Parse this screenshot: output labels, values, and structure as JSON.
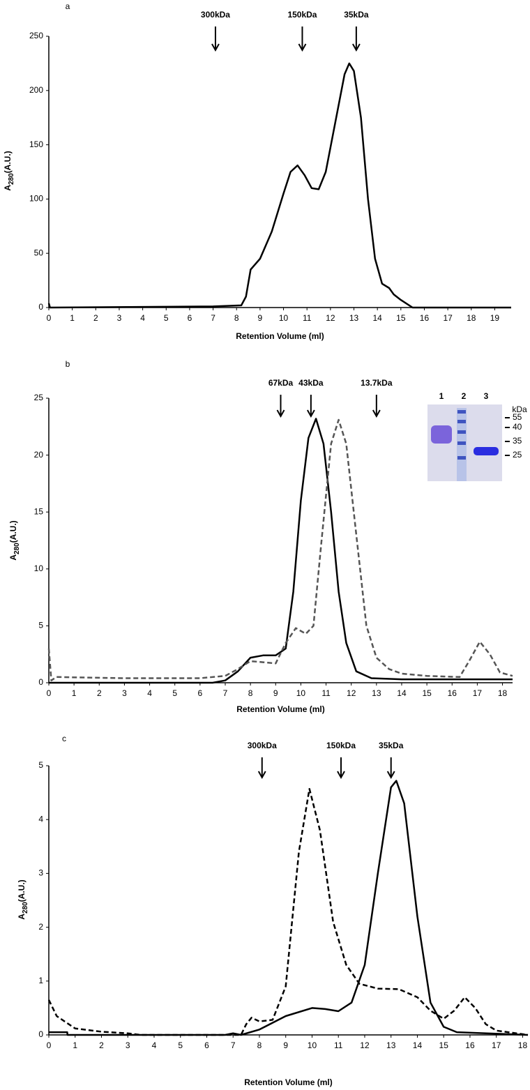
{
  "chart_data": [
    {
      "type": "line",
      "panel": "a",
      "xlabel": "Retention Volume (ml)",
      "ylabel": "A",
      "ylabel_sub": "280",
      "ylabel_unit": "(A.U.)",
      "xlim": [
        0,
        19.7
      ],
      "xticks": [
        0,
        1,
        2,
        3,
        4,
        5,
        6,
        7,
        8,
        9,
        10,
        11,
        12,
        13,
        14,
        15,
        16,
        17,
        18,
        19
      ],
      "ylim": [
        0,
        250
      ],
      "yticks": [
        0,
        50,
        100,
        150,
        200,
        250
      ],
      "markers": [
        {
          "label": "300kDa",
          "x": 7.1
        },
        {
          "label": "150kDa",
          "x": 10.8
        },
        {
          "label": "35kDa",
          "x": 13.1
        }
      ],
      "series": [
        {
          "color": "#000000",
          "dash": false,
          "x": [
            0,
            0.05,
            7,
            8.2,
            8.4,
            8.6,
            9,
            9.5,
            10,
            10.3,
            10.6,
            10.9,
            11.2,
            11.5,
            11.8,
            12.2,
            12.6,
            12.8,
            13,
            13.3,
            13.6,
            13.9,
            14.2,
            14.5,
            14.7,
            15,
            15.5,
            19.7
          ],
          "values": [
            4,
            0,
            1,
            2,
            10,
            35,
            45,
            70,
            105,
            125,
            131,
            122,
            110,
            109,
            125,
            170,
            215,
            225,
            218,
            175,
            100,
            45,
            22,
            18,
            12,
            7,
            0,
            0
          ]
        }
      ]
    },
    {
      "type": "line",
      "panel": "b",
      "xlabel": "Retention Volume (ml)",
      "ylabel": "A",
      "ylabel_sub": "280",
      "ylabel_unit": "(A.U.)",
      "xlim": [
        0,
        18.4
      ],
      "xticks": [
        0,
        1,
        2,
        3,
        4,
        5,
        6,
        7,
        8,
        9,
        10,
        11,
        12,
        13,
        14,
        15,
        16,
        17,
        18
      ],
      "ylim": [
        0,
        25
      ],
      "yticks": [
        0,
        5,
        10,
        15,
        20,
        25
      ],
      "markers": [
        {
          "label": "67kDa",
          "x": 9.2
        },
        {
          "label": "43kDa",
          "x": 10.4
        },
        {
          "label": "13.7kDa",
          "x": 13.0
        }
      ],
      "inset": {
        "lanes": [
          "1",
          "2",
          "3"
        ],
        "unit": "kDa",
        "sizes": [
          "55",
          "40",
          "35",
          "25"
        ]
      },
      "series": [
        {
          "color": "#000000",
          "dash": false,
          "x": [
            0,
            6.5,
            7,
            7.5,
            8,
            8.5,
            9,
            9.4,
            9.7,
            10,
            10.3,
            10.6,
            10.9,
            11.2,
            11.5,
            11.8,
            12.2,
            12.8,
            14,
            18.4
          ],
          "values": [
            0,
            0,
            0.2,
            1,
            2.2,
            2.4,
            2.4,
            3,
            8,
            16,
            21.5,
            23.2,
            21,
            15,
            8,
            3.5,
            1,
            0.4,
            0.3,
            0.3
          ]
        },
        {
          "color": "#555555",
          "dash": true,
          "x": [
            0,
            0.1,
            0.3,
            3,
            6,
            7,
            7.5,
            8,
            8.5,
            9,
            9.4,
            9.8,
            10.2,
            10.5,
            10.8,
            11.2,
            11.5,
            11.8,
            12.2,
            12.6,
            13,
            13.5,
            14,
            15,
            16.3,
            16.7,
            17.1,
            17.5,
            17.9,
            18.4
          ],
          "values": [
            3,
            0.2,
            0.5,
            0.4,
            0.4,
            0.6,
            1.2,
            1.9,
            1.8,
            1.7,
            3.5,
            4.8,
            4.3,
            5,
            12,
            21,
            23.1,
            21,
            13,
            5,
            2.2,
            1.2,
            0.8,
            0.6,
            0.5,
            2,
            3.6,
            2.5,
            0.9,
            0.6
          ]
        }
      ]
    },
    {
      "type": "line",
      "panel": "c",
      "xlabel": "Retention Volume (ml)",
      "ylabel": "A",
      "ylabel_sub": "280",
      "ylabel_unit": "(A.U.)",
      "xlim": [
        0,
        18.2
      ],
      "xticks": [
        0,
        1,
        2,
        3,
        4,
        5,
        6,
        7,
        8,
        9,
        10,
        11,
        12,
        13,
        14,
        15,
        16,
        17,
        18
      ],
      "ylim": [
        0,
        5
      ],
      "yticks": [
        0,
        1,
        2,
        3,
        4,
        5
      ],
      "markers": [
        {
          "label": "300kDa",
          "x": 8.1
        },
        {
          "label": "150kDa",
          "x": 11.1
        },
        {
          "label": "35kDa",
          "x": 13.0
        }
      ],
      "series": [
        {
          "color": "#000000",
          "dash": false,
          "x": [
            0,
            0.7,
            0.71,
            6.7,
            7,
            7.3,
            8,
            9,
            10,
            10.5,
            11,
            11.5,
            12,
            12.5,
            13,
            13.2,
            13.5,
            14,
            14.5,
            15,
            15.5,
            18.2
          ],
          "values": [
            0.05,
            0.05,
            0,
            0,
            0.03,
            0,
            0.1,
            0.35,
            0.5,
            0.48,
            0.44,
            0.6,
            1.3,
            3,
            4.6,
            4.72,
            4.3,
            2.2,
            0.6,
            0.15,
            0.05,
            0
          ]
        },
        {
          "color": "#000000",
          "dash": true,
          "x": [
            0,
            0.3,
            1,
            2,
            3,
            3.5,
            7.3,
            7.5,
            7.7,
            8,
            8.5,
            9,
            9.5,
            9.9,
            10.3,
            10.8,
            11.3,
            11.8,
            12.5,
            13.3,
            14,
            14.5,
            15,
            15.4,
            15.8,
            16.2,
            16.6,
            17,
            18.2
          ],
          "values": [
            0.65,
            0.35,
            0.12,
            0.06,
            0.03,
            0,
            0,
            0.2,
            0.32,
            0.25,
            0.28,
            0.9,
            3.4,
            4.57,
            3.8,
            2.1,
            1.3,
            0.95,
            0.86,
            0.85,
            0.7,
            0.45,
            0.3,
            0.45,
            0.7,
            0.5,
            0.2,
            0.08,
            0
          ]
        }
      ]
    }
  ]
}
